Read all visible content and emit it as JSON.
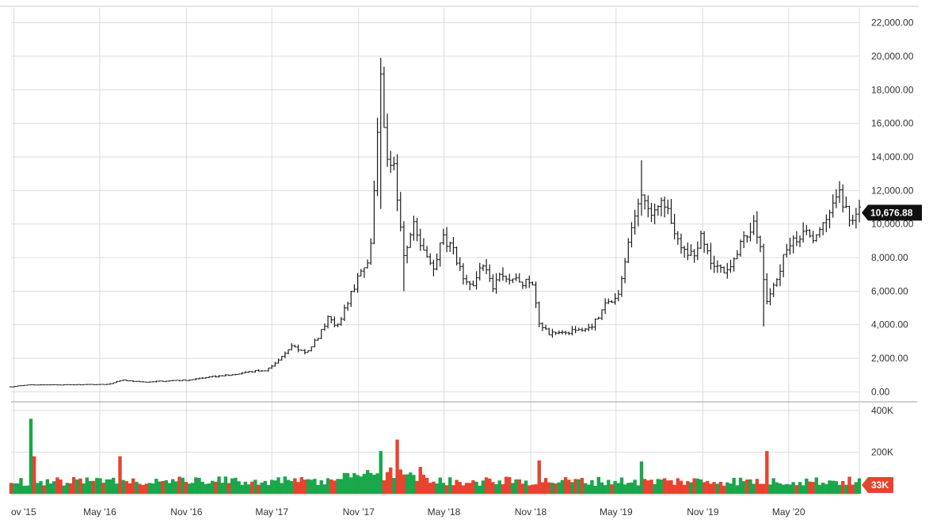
{
  "chart_data": [
    {
      "type": "ohlc",
      "interval": "weekly",
      "x_start": "2015-10-26",
      "x_end": "2020-09-28",
      "ylim": [
        -500,
        22500
      ],
      "y_ticks": [
        "0.00",
        "2,000.00",
        "4,000.00",
        "6,000.00",
        "8,000.00",
        "10,000.00",
        "12,000.00",
        "14,000.00",
        "16,000.00",
        "18,000.00",
        "20,000.00",
        "22,000.00"
      ],
      "y_tick_values": [
        0,
        2000,
        4000,
        6000,
        8000,
        10000,
        12000,
        14000,
        16000,
        18000,
        20000,
        22000
      ],
      "x_ticks": [
        "ov '15",
        "May '16",
        "Nov '16",
        "May '17",
        "Nov '17",
        "May '18",
        "Nov '18",
        "May '19",
        "Nov '19",
        "May '20"
      ],
      "x_tick_dates": [
        "2015-11-01",
        "2016-05-01",
        "2016-11-01",
        "2017-05-01",
        "2017-11-01",
        "2018-05-01",
        "2018-11-01",
        "2019-05-01",
        "2019-11-01",
        "2020-05-01"
      ],
      "last_price": "10,676.88",
      "last_price_value": 10676.88,
      "close_path": [
        [
          "2015-10-26",
          300
        ],
        [
          "2015-12-01",
          420
        ],
        [
          "2016-03-01",
          420
        ],
        [
          "2016-05-20",
          450
        ],
        [
          "2016-06-15",
          700
        ],
        [
          "2016-08-01",
          580
        ],
        [
          "2016-11-01",
          700
        ],
        [
          "2016-12-25",
          900
        ],
        [
          "2017-02-01",
          1000
        ],
        [
          "2017-03-10",
          1200
        ],
        [
          "2017-04-20",
          1300
        ],
        [
          "2017-05-20",
          2000
        ],
        [
          "2017-06-10",
          2700
        ],
        [
          "2017-07-15",
          2300
        ],
        [
          "2017-08-10",
          3400
        ],
        [
          "2017-09-01",
          4600
        ],
        [
          "2017-09-15",
          3700
        ],
        [
          "2017-10-10",
          5400
        ],
        [
          "2017-11-05",
          7200
        ],
        [
          "2017-11-25",
          8200
        ],
        [
          "2017-12-10",
          15000
        ],
        [
          "2017-12-17",
          19000
        ],
        [
          "2017-12-31",
          13800
        ],
        [
          "2018-01-14",
          13500
        ],
        [
          "2018-02-04",
          8200
        ],
        [
          "2018-02-25",
          10000
        ],
        [
          "2018-03-18",
          8600
        ],
        [
          "2018-04-08",
          7000
        ],
        [
          "2018-04-29",
          9300
        ],
        [
          "2018-05-20",
          8400
        ],
        [
          "2018-06-10",
          6800
        ],
        [
          "2018-06-30",
          6200
        ],
        [
          "2018-07-22",
          7800
        ],
        [
          "2018-08-12",
          6300
        ],
        [
          "2018-09-02",
          7000
        ],
        [
          "2018-10-07",
          6600
        ],
        [
          "2018-11-04",
          6400
        ],
        [
          "2018-11-18",
          4200
        ],
        [
          "2018-12-09",
          3500
        ],
        [
          "2019-01-13",
          3600
        ],
        [
          "2019-02-10",
          3600
        ],
        [
          "2019-03-10",
          3900
        ],
        [
          "2019-04-07",
          5100
        ],
        [
          "2019-05-05",
          5800
        ],
        [
          "2019-05-26",
          8700
        ],
        [
          "2019-06-23",
          11800
        ],
        [
          "2019-07-14",
          10400
        ],
        [
          "2019-08-04",
          11500
        ],
        [
          "2019-08-25",
          10200
        ],
        [
          "2019-09-22",
          8200
        ],
        [
          "2019-10-13",
          8300
        ],
        [
          "2019-10-27",
          9300
        ],
        [
          "2019-11-24",
          7300
        ],
        [
          "2019-12-22",
          7300
        ],
        [
          "2020-01-19",
          8700
        ],
        [
          "2020-02-16",
          10000
        ],
        [
          "2020-03-01",
          8800
        ],
        [
          "2020-03-15",
          5200
        ],
        [
          "2020-04-05",
          6800
        ],
        [
          "2020-05-03",
          8900
        ],
        [
          "2020-05-31",
          9500
        ],
        [
          "2020-06-28",
          9100
        ],
        [
          "2020-07-26",
          11000
        ],
        [
          "2020-08-16",
          11800
        ],
        [
          "2020-09-06",
          10300
        ],
        [
          "2020-09-28",
          10676
        ]
      ],
      "spikes": [
        [
          "2017-12-17",
          10900,
          19900
        ],
        [
          "2018-02-04",
          6000,
          9000
        ],
        [
          "2019-06-23",
          10500,
          13800
        ],
        [
          "2020-03-08",
          3900,
          8100
        ]
      ]
    },
    {
      "type": "bar",
      "name": "volume",
      "ylim": [
        0,
        430000
      ],
      "y_ticks": [
        "400K",
        "200K"
      ],
      "y_tick_values": [
        400000,
        200000
      ],
      "last_volume": "33K",
      "up_color": "#1aa64b",
      "down_color": "#e8432f",
      "spikes": [
        [
          "2015-12-07",
          360000,
          "up"
        ],
        [
          "2015-12-14",
          180000,
          "down"
        ],
        [
          "2016-06-13",
          180000,
          "down"
        ],
        [
          "2017-12-17",
          205000,
          "up"
        ],
        [
          "2018-01-21",
          260000,
          "down"
        ],
        [
          "2018-11-18",
          160000,
          "down"
        ],
        [
          "2019-06-23",
          155000,
          "up"
        ],
        [
          "2020-03-15",
          205000,
          "down"
        ]
      ]
    }
  ],
  "colors": {
    "price_bar": "#1a1a1a",
    "grid": "#dcdcdc",
    "badge_price_bg": "#111111",
    "badge_volume_bg": "#e8432f"
  }
}
